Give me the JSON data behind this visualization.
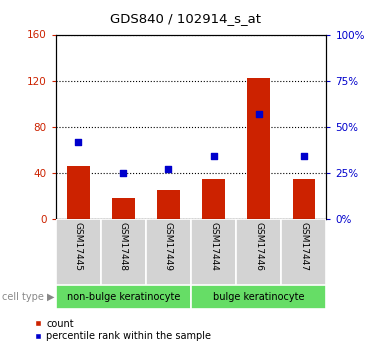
{
  "title": "GDS840 / 102914_s_at",
  "samples": [
    "GSM17445",
    "GSM17448",
    "GSM17449",
    "GSM17444",
    "GSM17446",
    "GSM17447"
  ],
  "counts": [
    46,
    18,
    25,
    35,
    122,
    35
  ],
  "percentile_ranks": [
    42,
    25,
    27,
    34,
    57,
    34
  ],
  "group_labels": [
    "non-bulge keratinocyte",
    "bulge keratinocyte"
  ],
  "bar_color": "#cc2200",
  "dot_color": "#0000cc",
  "ylim_left": [
    0,
    160
  ],
  "ylim_right": [
    0,
    100
  ],
  "yticks_left": [
    0,
    40,
    80,
    120,
    160
  ],
  "yticks_right": [
    0,
    25,
    50,
    75,
    100
  ],
  "ytick_labels_left": [
    "0",
    "40",
    "80",
    "120",
    "160"
  ],
  "ytick_labels_right": [
    "0%",
    "25%",
    "50%",
    "75%",
    "100%"
  ],
  "label_count": "count",
  "label_percentile": "percentile rank within the sample",
  "cell_type_label": "cell type"
}
